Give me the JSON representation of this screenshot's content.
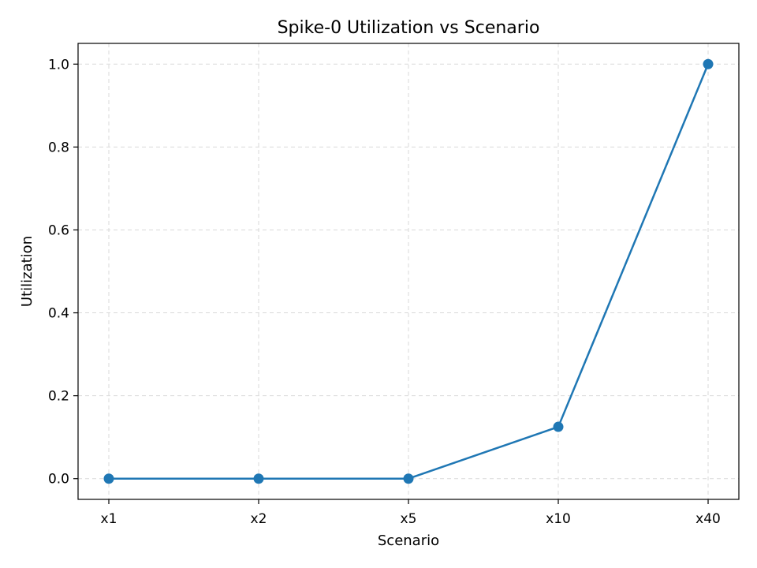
{
  "chart_data": {
    "type": "line",
    "title": "Spike-0 Utilization vs Scenario",
    "xlabel": "Scenario",
    "ylabel": "Utilization",
    "categories": [
      "x1",
      "x2",
      "x5",
      "x10",
      "x40"
    ],
    "series": [
      {
        "values": [
          0.0,
          0.0,
          0.0,
          0.125,
          1.0
        ]
      }
    ],
    "ylim": [
      -0.05,
      1.05
    ],
    "yticks": [
      0.0,
      0.2,
      0.4,
      0.6,
      0.8,
      1.0
    ],
    "ytick_labels": [
      "0.0",
      "0.2",
      "0.4",
      "0.6",
      "0.8",
      "1.0"
    ],
    "grid": true,
    "line_color": "#1f77b4"
  }
}
